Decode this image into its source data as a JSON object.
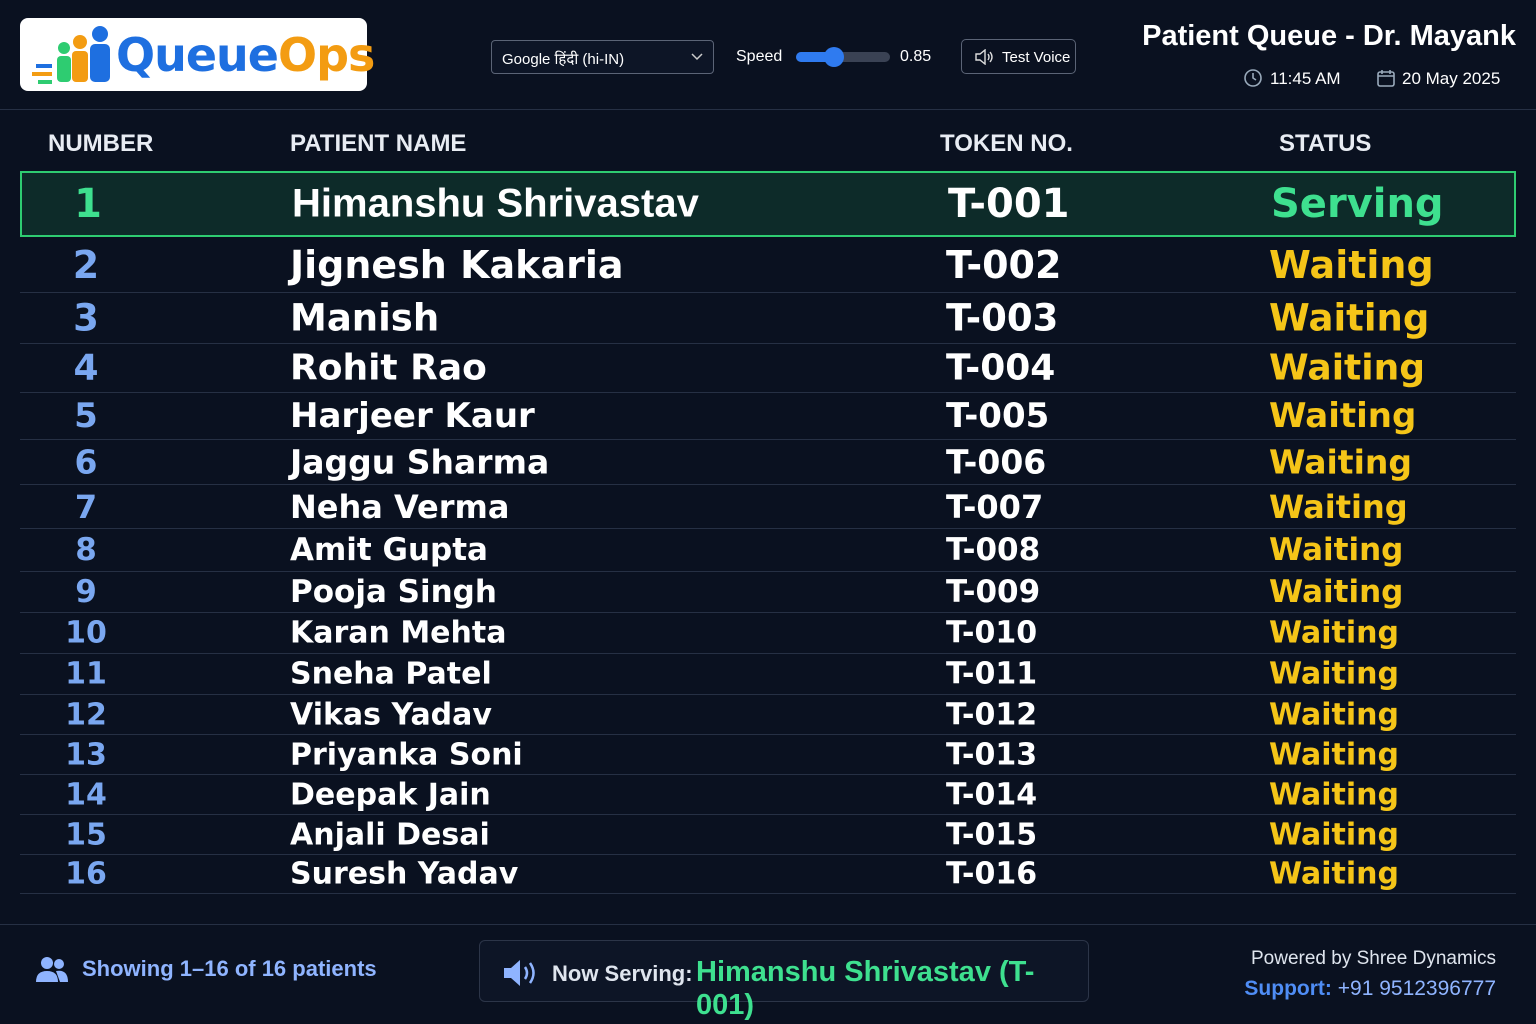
{
  "header": {
    "logo": {
      "queue": "Queue",
      "ops": "Ops"
    },
    "voice_select": "Google हिंदी (hi-IN)",
    "speed_label": "Speed",
    "speed_value": 0.85,
    "test_voice": "Test Voice",
    "title": "Patient Queue - Dr. Mayank",
    "time": "11:45 AM",
    "date": "20 May 2025"
  },
  "table": {
    "columns": [
      "NUMBER",
      "PATIENT NAME",
      "TOKEN NO.",
      "STATUS"
    ],
    "rows": [
      [
        1,
        "Himanshu Shrivastav",
        "T-001",
        "Serving"
      ],
      [
        2,
        "Jignesh Kakaria",
        "T-002",
        "Waiting"
      ],
      [
        3,
        "Manish",
        "T-003",
        "Waiting"
      ],
      [
        4,
        "Rohit Rao",
        "T-004",
        "Waiting"
      ],
      [
        5,
        "Harjeer Kaur",
        "T-005",
        "Waiting"
      ],
      [
        6,
        "Jaggu Sharma",
        "T-006",
        "Waiting"
      ],
      [
        7,
        "Neha Verma",
        "T-007",
        "Waiting"
      ],
      [
        8,
        "Amit Gupta",
        "T-008",
        "Waiting"
      ],
      [
        9,
        "Pooja Singh",
        "T-009",
        "Waiting"
      ],
      [
        10,
        "Karan Mehta",
        "T-010",
        "Waiting"
      ],
      [
        11,
        "Sneha Patel",
        "T-011",
        "Waiting"
      ],
      [
        12,
        "Vikas Yadav",
        "T-012",
        "Waiting"
      ],
      [
        13,
        "Priyanka Soni",
        "T-013",
        "Waiting"
      ],
      [
        14,
        "Deepak Jain",
        "T-014",
        "Waiting"
      ],
      [
        15,
        "Anjali Desai",
        "T-015",
        "Waiting"
      ],
      [
        16,
        "Suresh Yadav",
        "T-016",
        "Waiting"
      ]
    ]
  },
  "footer": {
    "showing": "Showing 1–16 of 16 patients",
    "now_serving_label": "Now Serving:",
    "now_serving": "Himanshu Shrivastav (T-001)",
    "powered_by": "Powered by Shree Dynamics",
    "support_label": "Support:",
    "support_number": "+91 9512396777"
  }
}
